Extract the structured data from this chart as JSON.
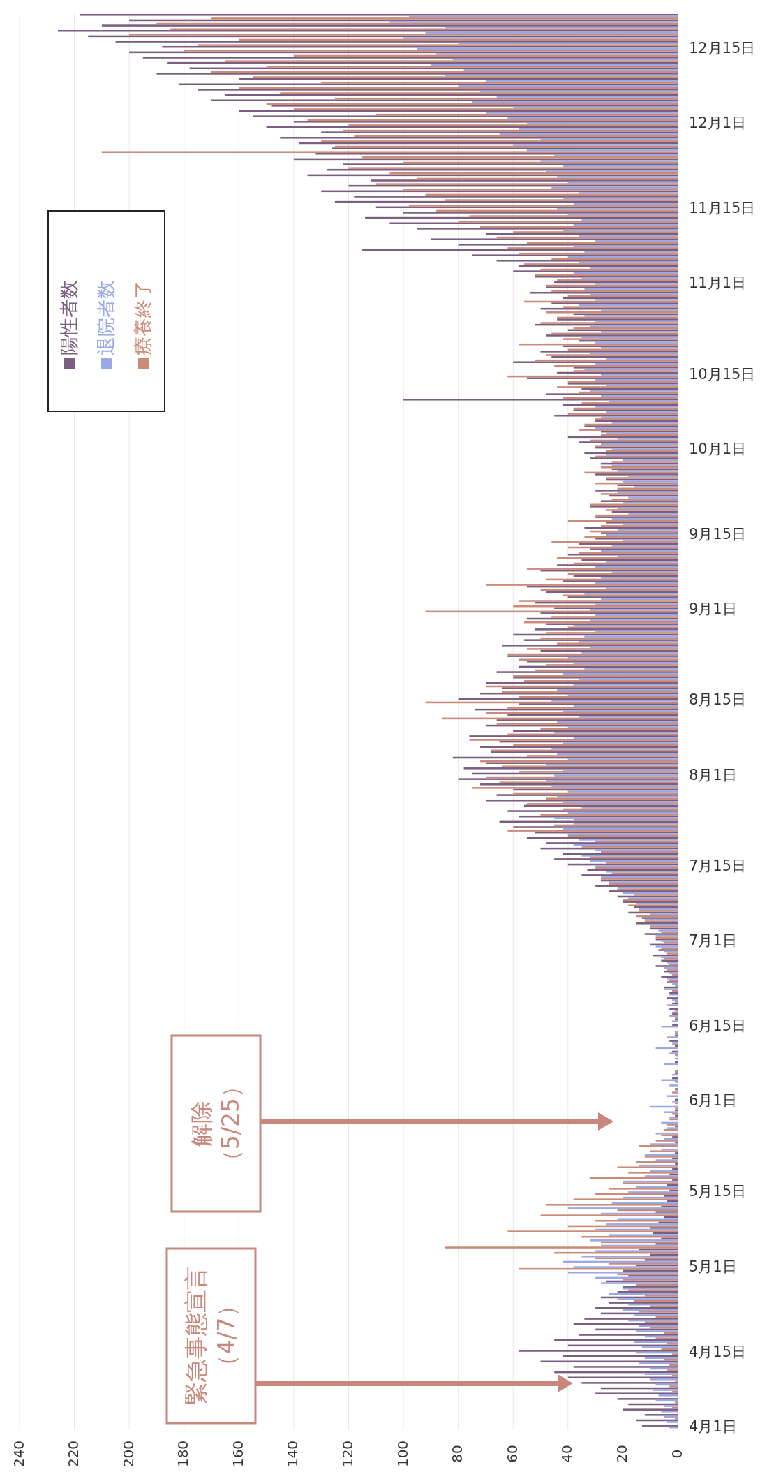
{
  "chart_data": {
    "type": "bar",
    "orientation": "horizontal",
    "categories": [
      null,
      null,
      null,
      null,
      null,
      null,
      "12月15日",
      null,
      null,
      null,
      null,
      null,
      null,
      null,
      null,
      null,
      null,
      null,
      null,
      null,
      "12月1日",
      null,
      null,
      null,
      null,
      null,
      null,
      null,
      null,
      null,
      null,
      null,
      null,
      null,
      null,
      null,
      "11月15日",
      null,
      null,
      null,
      null,
      null,
      null,
      null,
      null,
      null,
      null,
      null,
      null,
      null,
      "11月1日",
      null,
      null,
      null,
      null,
      null,
      null,
      null,
      null,
      null,
      null,
      null,
      null,
      null,
      null,
      null,
      null,
      "10月15日",
      null,
      null,
      null,
      null,
      null,
      null,
      null,
      null,
      null,
      null,
      null,
      null,
      null,
      "10月1日",
      null,
      null,
      null,
      null,
      null,
      null,
      null,
      null,
      null,
      null,
      null,
      null,
      null,
      null,
      null,
      "9月15日",
      null,
      null,
      null,
      null,
      null,
      null,
      null,
      null,
      null,
      null,
      null,
      null,
      null,
      "9月1日",
      null,
      null,
      null,
      null,
      null,
      null,
      null,
      null,
      null,
      null,
      null,
      null,
      null,
      null,
      null,
      null,
      "8月15日",
      null,
      null,
      null,
      null,
      null,
      null,
      null,
      null,
      null,
      null,
      null,
      null,
      null,
      "8月1日",
      null,
      null,
      null,
      null,
      null,
      null,
      null,
      null,
      null,
      null,
      null,
      null,
      null,
      null,
      null,
      null,
      "7月15日",
      null,
      null,
      null,
      null,
      null,
      null,
      null,
      null,
      null,
      null,
      null,
      null,
      null,
      "7月1日",
      null,
      null,
      null,
      null,
      null,
      null,
      null,
      null,
      null,
      null,
      null,
      null,
      null,
      null,
      null,
      "6月15日",
      null,
      null,
      null,
      null,
      null,
      null,
      null,
      null,
      null,
      null,
      null,
      null,
      null,
      "6月1日",
      null,
      null,
      null,
      null,
      null,
      null,
      null,
      null,
      null,
      null,
      null,
      null,
      null,
      null,
      null,
      null,
      "5月15日",
      null,
      null,
      null,
      null,
      null,
      null,
      null,
      null,
      null,
      null,
      null,
      null,
      null,
      "5月1日",
      null,
      null,
      null,
      null,
      null,
      null,
      null,
      null,
      null,
      null,
      null,
      null,
      null,
      null,
      null,
      "4月15日",
      null,
      null,
      null,
      null,
      null,
      null,
      null,
      null,
      null,
      null,
      null,
      null,
      null,
      "4月1日"
    ],
    "series": [
      {
        "name": "陽性者数",
        "color": "#7a5f80",
        "values": [
          218,
          200,
          210,
          226,
          215,
          205,
          188,
          200,
          195,
          186,
          178,
          190,
          160,
          182,
          175,
          165,
          170,
          148,
          160,
          155,
          140,
          150,
          130,
          145,
          138,
          126,
          132,
          140,
          122,
          128,
          135,
          112,
          120,
          130,
          118,
          125,
          110,
          100,
          114,
          105,
          95,
          70,
          90,
          80,
          115,
          75,
          66,
          58,
          60,
          52,
          45,
          48,
          54,
          42,
          46,
          50,
          38,
          44,
          52,
          40,
          48,
          36,
          42,
          50,
          46,
          60,
          38,
          44,
          55,
          40,
          35,
          48,
          100,
          42,
          38,
          45,
          30,
          34,
          28,
          40,
          36,
          30,
          34,
          32,
          28,
          24,
          30,
          26,
          22,
          30,
          25,
          28,
          32,
          24,
          30,
          26,
          34,
          28,
          30,
          36,
          32,
          40,
          35,
          44,
          50,
          38,
          42,
          55,
          48,
          40,
          52,
          45,
          50,
          55,
          48,
          52,
          60,
          56,
          64,
          50,
          62,
          55,
          58,
          66,
          60,
          70,
          64,
          72,
          80,
          58,
          74,
          62,
          66,
          70,
          60,
          76,
          65,
          72,
          68,
          82,
          70,
          78,
          75,
          80,
          72,
          60,
          66,
          70,
          56,
          62,
          58,
          65,
          60,
          52,
          55,
          48,
          50,
          42,
          45,
          40,
          33,
          35,
          28,
          30,
          25,
          22,
          20,
          16,
          18,
          13,
          15,
          10,
          12,
          8,
          10,
          7,
          9,
          6,
          8,
          5,
          6,
          4,
          5,
          3,
          4,
          2,
          3,
          2,
          1,
          2,
          0,
          1,
          3,
          1,
          2,
          0,
          1,
          0,
          1,
          2,
          0,
          1,
          0,
          1,
          0,
          1,
          1,
          0,
          1,
          0,
          2,
          1,
          0,
          1,
          2,
          1,
          2,
          3,
          2,
          4,
          3,
          5,
          4,
          6,
          8,
          5,
          7,
          10,
          9,
          6,
          8,
          14,
          10,
          12,
          15,
          20,
          18,
          26,
          20,
          22,
          28,
          25,
          30,
          28,
          34,
          38,
          30,
          36,
          45,
          40,
          58,
          42,
          50,
          38,
          45,
          40,
          35,
          28,
          30,
          22,
          18,
          20,
          12,
          15,
          13
        ]
      },
      {
        "name": "退院者数",
        "color": "#9aa8e4",
        "values": [
          98,
          105,
          85,
          92,
          100,
          80,
          95,
          88,
          82,
          90,
          78,
          85,
          70,
          80,
          72,
          66,
          75,
          60,
          70,
          62,
          55,
          58,
          65,
          50,
          60,
          55,
          45,
          50,
          42,
          48,
          44,
          40,
          46,
          36,
          42,
          38,
          44,
          40,
          35,
          38,
          42,
          36,
          30,
          38,
          34,
          40,
          36,
          32,
          38,
          35,
          30,
          34,
          32,
          30,
          36,
          28,
          34,
          30,
          32,
          28,
          35,
          30,
          28,
          32,
          26,
          30,
          34,
          28,
          30,
          26,
          32,
          28,
          25,
          30,
          26,
          28,
          24,
          30,
          26,
          22,
          28,
          24,
          26,
          20,
          24,
          22,
          18,
          20,
          16,
          22,
          18,
          20,
          22,
          18,
          24,
          20,
          22,
          26,
          20,
          24,
          28,
          22,
          26,
          30,
          24,
          28,
          30,
          26,
          34,
          28,
          30,
          32,
          30,
          32,
          38,
          30,
          34,
          36,
          32,
          35,
          40,
          38,
          34,
          42,
          36,
          38,
          44,
          40,
          46,
          38,
          42,
          36,
          44,
          40,
          45,
          38,
          42,
          46,
          44,
          40,
          48,
          42,
          45,
          48,
          46,
          40,
          44,
          42,
          35,
          40,
          45,
          38,
          42,
          40,
          36,
          38,
          30,
          35,
          32,
          30,
          26,
          28,
          25,
          22,
          20,
          18,
          15,
          14,
          10,
          12,
          10,
          7,
          8,
          6,
          8,
          5,
          6,
          4,
          5,
          3,
          4,
          2,
          5,
          3,
          2,
          4,
          1,
          3,
          2,
          6,
          1,
          4,
          2,
          8,
          3,
          1,
          5,
          0,
          2,
          6,
          3,
          1,
          4,
          2,
          10,
          5,
          3,
          6,
          4,
          8,
          5,
          10,
          6,
          12,
          8,
          14,
          10,
          12,
          20,
          15,
          18,
          20,
          24,
          40,
          28,
          22,
          26,
          30,
          25,
          32,
          28,
          30,
          35,
          42,
          38,
          40,
          30,
          28,
          20,
          25,
          22,
          18,
          20,
          16,
          18,
          14,
          15,
          12,
          16,
          13,
          15,
          12,
          14,
          10,
          12,
          10,
          8,
          9,
          7,
          8,
          5,
          6,
          5,
          4,
          3
        ]
      },
      {
        "name": "療養終了",
        "color": "#cc8a78",
        "values": [
          170,
          190,
          185,
          200,
          160,
          175,
          180,
          140,
          165,
          150,
          170,
          155,
          130,
          160,
          145,
          125,
          150,
          140,
          110,
          135,
          120,
          122,
          118,
          130,
          125,
          210,
          115,
          100,
          120,
          105,
          95,
          110,
          100,
          92,
          85,
          98,
          88,
          76,
          80,
          72,
          60,
          66,
          55,
          62,
          58,
          46,
          56,
          50,
          52,
          44,
          48,
          46,
          40,
          56,
          42,
          48,
          44,
          50,
          38,
          46,
          42,
          58,
          40,
          48,
          52,
          45,
          38,
          62,
          40,
          44,
          36,
          42,
          35,
          38,
          40,
          30,
          34,
          36,
          28,
          32,
          30,
          26,
          30,
          24,
          28,
          34,
          26,
          30,
          22,
          28,
          24,
          32,
          26,
          30,
          40,
          28,
          32,
          34,
          46,
          40,
          36,
          44,
          38,
          55,
          40,
          48,
          70,
          50,
          42,
          58,
          60,
          92,
          46,
          56,
          40,
          48,
          50,
          44,
          55,
          62,
          58,
          48,
          52,
          60,
          56,
          70,
          64,
          58,
          92,
          62,
          70,
          86,
          66,
          50,
          62,
          76,
          60,
          68,
          55,
          72,
          64,
          58,
          70,
          65,
          75,
          60,
          48,
          55,
          42,
          50,
          38,
          45,
          62,
          40,
          30,
          35,
          28,
          32,
          26,
          30,
          24,
          28,
          25,
          22,
          16,
          20,
          18,
          14,
          15,
          12,
          10,
          6,
          8,
          5,
          6,
          4,
          5,
          3,
          4,
          2,
          3,
          1,
          2,
          0,
          1,
          0,
          2,
          1,
          0,
          0,
          1,
          0,
          2,
          0,
          1,
          0,
          0,
          1,
          0,
          1,
          0,
          2,
          0,
          1,
          1,
          2,
          3,
          4,
          5,
          6,
          8,
          14,
          10,
          12,
          15,
          22,
          18,
          32,
          20,
          25,
          30,
          38,
          48,
          22,
          50,
          30,
          40,
          62,
          35,
          28,
          85,
          45,
          30,
          25,
          58,
          22,
          20,
          15,
          18,
          12,
          16,
          10,
          14,
          8,
          12,
          10,
          5,
          8,
          4,
          6,
          2,
          5,
          3,
          4,
          2,
          1,
          3,
          2,
          0,
          1,
          2,
          0,
          1,
          0,
          0
        ]
      }
    ],
    "xlim": [
      240,
      0
    ],
    "xticks": [
      240,
      220,
      200,
      180,
      160,
      140,
      120,
      100,
      80,
      60,
      40,
      20,
      0
    ],
    "grid": "x",
    "legend": "top left",
    "annotations": [
      "緊急事態宣言",
      "（4/7）",
      "解除",
      "（5/25）"
    ]
  }
}
